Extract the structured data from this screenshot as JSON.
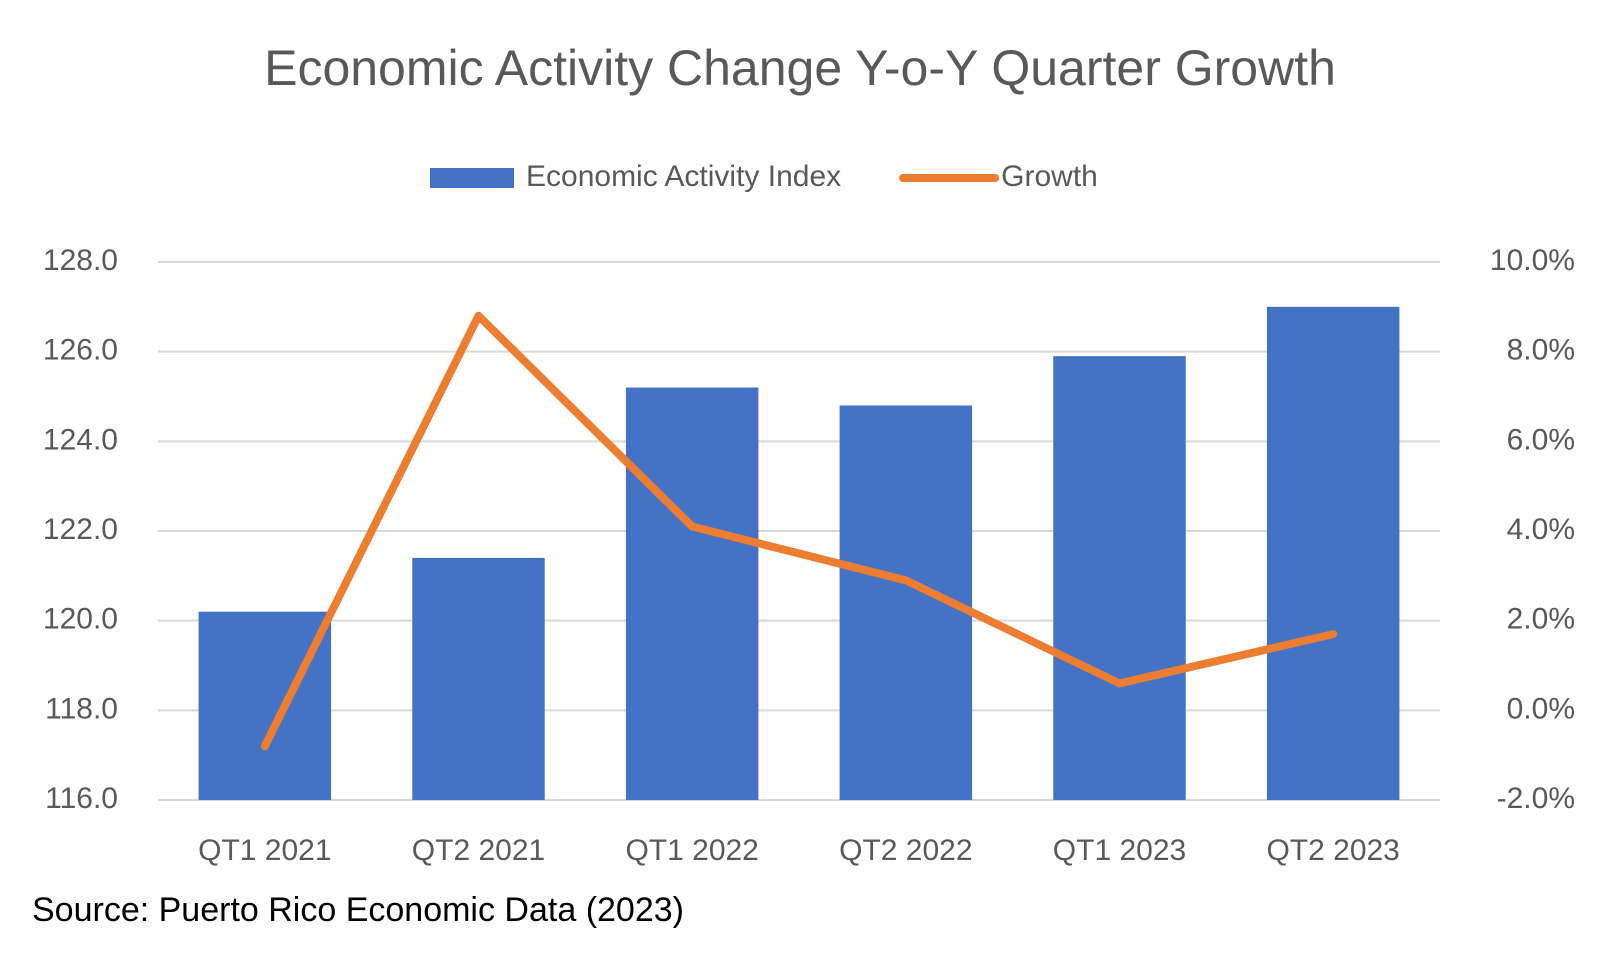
{
  "chart_data": {
    "type": "bar",
    "title": "Economic Activity Change Y-o-Y Quarter Growth",
    "source": "Source: Puerto Rico Economic Data (2023)",
    "categories": [
      "QT1 2021",
      "QT2 2021",
      "QT1 2022",
      "QT2 2022",
      "QT1 2023",
      "QT2 2023"
    ],
    "series": [
      {
        "name": "Economic Activity Index",
        "type": "bar",
        "color": "#4472c4",
        "values": [
          120.2,
          121.4,
          125.2,
          124.8,
          125.9,
          127.0
        ]
      },
      {
        "name": "Growth",
        "type": "line",
        "axis": "y2",
        "color": "#ed7d31",
        "values": [
          -0.8,
          8.8,
          4.1,
          2.9,
          0.6,
          1.7
        ]
      }
    ],
    "ylim": [
      116,
      128
    ],
    "yticks": [
      {
        "value": 116,
        "label": "116.0"
      },
      {
        "value": 118,
        "label": "118.0"
      },
      {
        "value": 120,
        "label": "120.0"
      },
      {
        "value": 122,
        "label": "122.0"
      },
      {
        "value": 124,
        "label": "124.0"
      },
      {
        "value": 126,
        "label": "126.0"
      },
      {
        "value": 128,
        "label": "128.0"
      }
    ],
    "y2lim": [
      -2,
      10
    ],
    "y2ticks": [
      {
        "value": -2,
        "label": "-2.0%"
      },
      {
        "value": 0,
        "label": "0.0%"
      },
      {
        "value": 2,
        "label": "2.0%"
      },
      {
        "value": 4,
        "label": "4.0%"
      },
      {
        "value": 6,
        "label": "6.0%"
      },
      {
        "value": 8,
        "label": "8.0%"
      },
      {
        "value": 10,
        "label": "10.0%"
      }
    ],
    "grid": true,
    "legend": "top"
  }
}
